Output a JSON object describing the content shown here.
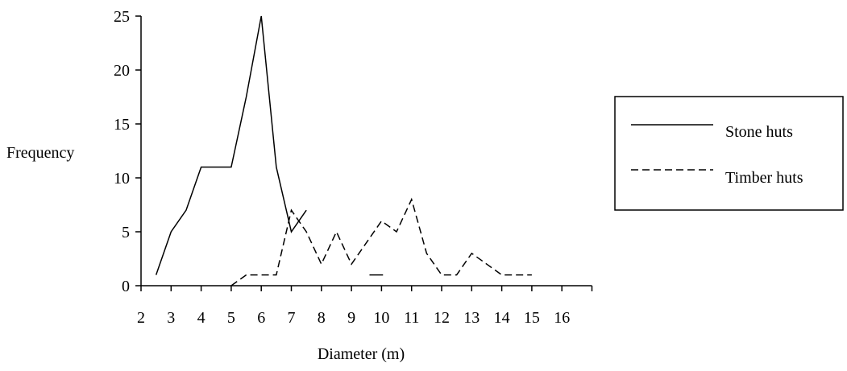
{
  "chart_data": {
    "type": "line",
    "title": "",
    "xlabel": "Diameter (m)",
    "ylabel": "Frequency",
    "xlim": [
      2,
      17
    ],
    "ylim": [
      0,
      25
    ],
    "x_ticks": [
      2,
      3,
      4,
      5,
      6,
      7,
      8,
      9,
      10,
      11,
      12,
      13,
      14,
      15,
      16
    ],
    "y_ticks": [
      0,
      5,
      10,
      15,
      20,
      25
    ],
    "grid": false,
    "legend_position": "right",
    "series": [
      {
        "name": "Stone huts",
        "style": "solid",
        "color": "#000000",
        "x": [
          2.5,
          3,
          3.5,
          4,
          4.5,
          5,
          5.5,
          6,
          6.5,
          7,
          7.5
        ],
        "y": [
          1,
          5,
          7,
          11,
          11,
          11,
          17.5,
          25,
          11,
          5,
          7
        ]
      },
      {
        "name": "Timber huts",
        "style": "dashed",
        "color": "#000000",
        "x": [
          5,
          5.5,
          6,
          6.5,
          7,
          7.5,
          8,
          8.5,
          9,
          9.5,
          10,
          10.5,
          11,
          11.5,
          12,
          12.5,
          13,
          13.5,
          14,
          14.5,
          15
        ],
        "y": [
          0,
          1,
          1,
          1,
          7,
          5,
          2,
          5,
          2,
          4,
          6,
          5,
          8,
          3,
          1,
          1,
          3,
          2,
          1,
          1,
          1
        ]
      }
    ],
    "annotations": [
      {
        "type": "segment",
        "x": [
          9.6,
          10.05
        ],
        "y": [
          1,
          1
        ]
      }
    ]
  }
}
